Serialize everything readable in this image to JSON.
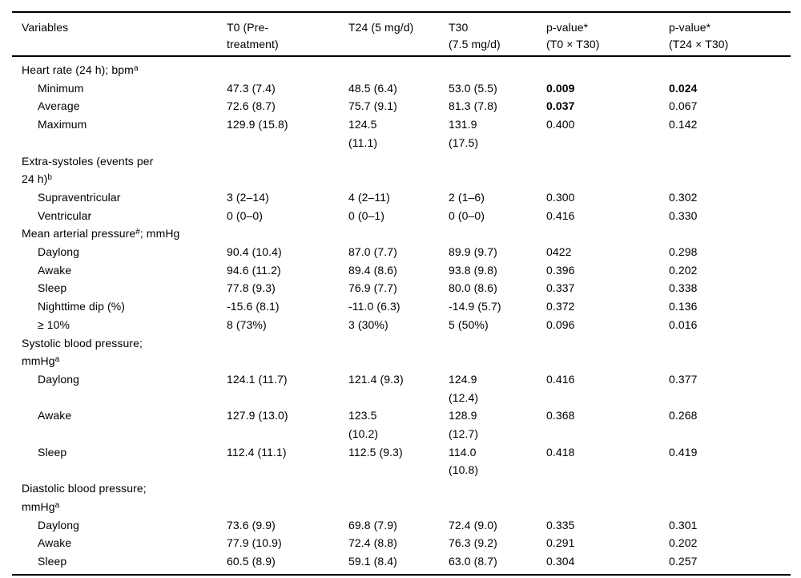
{
  "table": {
    "columns": [
      {
        "label": "Variables"
      },
      {
        "label": "T0 (Pre-\ntreatment)"
      },
      {
        "label": "T24 (5 mg/d)"
      },
      {
        "label": "T30\n(7.5 mg/d)"
      },
      {
        "label": "p-value*\n(T0 × T30)"
      },
      {
        "label": "p-value*\n(T24 × T30)"
      }
    ],
    "rows": [
      {
        "type": "group",
        "label": {
          "pre": "Heart rate (24 h); bpm",
          "sup": "a",
          "post": ""
        },
        "cells": [
          "",
          "",
          "",
          "",
          ""
        ],
        "bold": []
      },
      {
        "type": "sub",
        "label": {
          "pre": "Minimum",
          "sup": "",
          "post": ""
        },
        "cells": [
          "47.3 (7.4)",
          "48.5 (6.4)",
          "53.0 (5.5)",
          "0.009",
          "0.024"
        ],
        "bold": [
          3,
          4
        ]
      },
      {
        "type": "sub",
        "label": {
          "pre": "Average",
          "sup": "",
          "post": ""
        },
        "cells": [
          "72.6 (8.7)",
          "75.7 (9.1)",
          "81.3 (7.8)",
          "0.037",
          "0.067"
        ],
        "bold": [
          3
        ]
      },
      {
        "type": "sub",
        "label": {
          "pre": "Maximum",
          "sup": "",
          "post": ""
        },
        "cells": [
          "129.9 (15.8)",
          "124.5\n(11.1)",
          "131.9\n(17.5)",
          "0.400",
          "0.142"
        ],
        "bold": []
      },
      {
        "type": "group",
        "label": {
          "pre": "Extra-systoles (events per\n24 h)",
          "sup": "b",
          "post": ""
        },
        "cells": [
          "",
          "",
          "",
          "",
          ""
        ],
        "bold": []
      },
      {
        "type": "sub",
        "label": {
          "pre": "Supraventricular",
          "sup": "",
          "post": ""
        },
        "cells": [
          "3 (2–14)",
          "4 (2–11)",
          "2 (1–6)",
          "0.300",
          "0.302"
        ],
        "bold": []
      },
      {
        "type": "sub",
        "label": {
          "pre": "Ventricular",
          "sup": "",
          "post": ""
        },
        "cells": [
          "0 (0–0)",
          "0 (0–1)",
          "0 (0–0)",
          "0.416",
          "0.330"
        ],
        "bold": []
      },
      {
        "type": "group",
        "label": {
          "pre": "Mean arterial pressure",
          "sup": "#",
          "post": "; mmHg"
        },
        "cells": [
          "",
          "",
          "",
          "",
          ""
        ],
        "bold": []
      },
      {
        "type": "sub",
        "label": {
          "pre": "Daylong",
          "sup": "",
          "post": ""
        },
        "cells": [
          "90.4 (10.4)",
          "87.0 (7.7)",
          "89.9 (9.7)",
          "0422",
          "0.298"
        ],
        "bold": []
      },
      {
        "type": "sub",
        "label": {
          "pre": "Awake",
          "sup": "",
          "post": ""
        },
        "cells": [
          "94.6 (11.2)",
          "89.4 (8.6)",
          "93.8 (9.8)",
          "0.396",
          "0.202"
        ],
        "bold": []
      },
      {
        "type": "sub",
        "label": {
          "pre": "Sleep",
          "sup": "",
          "post": ""
        },
        "cells": [
          "77.8 (9.3)",
          "76.9 (7.7)",
          "80.0 (8.6)",
          "0.337",
          "0.338"
        ],
        "bold": []
      },
      {
        "type": "sub",
        "label": {
          "pre": "Nighttime dip (%)",
          "sup": "",
          "post": ""
        },
        "cells": [
          "-15.6 (8.1)",
          "-11.0 (6.3)",
          "-14.9 (5.7)",
          "0.372",
          "0.136"
        ],
        "bold": []
      },
      {
        "type": "sub",
        "label": {
          "pre": "≥ 10%",
          "sup": "",
          "post": ""
        },
        "cells": [
          "8 (73%)",
          "3 (30%)",
          "5 (50%)",
          "0.096",
          "0.016"
        ],
        "bold": []
      },
      {
        "type": "group",
        "label": {
          "pre": "Systolic blood pressure;\nmmHg",
          "sup": "a",
          "post": ""
        },
        "cells": [
          "",
          "",
          "",
          "",
          ""
        ],
        "bold": []
      },
      {
        "type": "sub",
        "label": {
          "pre": "Daylong",
          "sup": "",
          "post": ""
        },
        "cells": [
          "124.1 (11.7)",
          "121.4 (9.3)",
          "124.9\n(12.4)",
          "0.416",
          "0.377"
        ],
        "bold": []
      },
      {
        "type": "sub",
        "label": {
          "pre": "Awake",
          "sup": "",
          "post": ""
        },
        "cells": [
          "127.9 (13.0)",
          "123.5\n(10.2)",
          "128.9\n(12.7)",
          "0.368",
          "0.268"
        ],
        "bold": []
      },
      {
        "type": "sub",
        "label": {
          "pre": "Sleep",
          "sup": "",
          "post": ""
        },
        "cells": [
          "112.4 (11.1)",
          "112.5 (9.3)",
          "114.0\n(10.8)",
          "0.418",
          "0.419"
        ],
        "bold": []
      },
      {
        "type": "group",
        "label": {
          "pre": "Diastolic blood pressure;\nmmHg",
          "sup": "a",
          "post": ""
        },
        "cells": [
          "",
          "",
          "",
          "",
          ""
        ],
        "bold": []
      },
      {
        "type": "sub",
        "label": {
          "pre": "Daylong",
          "sup": "",
          "post": ""
        },
        "cells": [
          "73.6 (9.9)",
          "69.8 (7.9)",
          "72.4 (9.0)",
          "0.335",
          "0.301"
        ],
        "bold": []
      },
      {
        "type": "sub",
        "label": {
          "pre": "Awake",
          "sup": "",
          "post": ""
        },
        "cells": [
          "77.9 (10.9)",
          "72.4 (8.8)",
          "76.3 (9.2)",
          "0.291",
          "0.202"
        ],
        "bold": []
      },
      {
        "type": "sub",
        "label": {
          "pre": "Sleep",
          "sup": "",
          "post": ""
        },
        "cells": [
          "60.5 (8.9)",
          "59.1 (8.4)",
          "63.0 (8.7)",
          "0.304",
          "0.257"
        ],
        "bold": []
      }
    ]
  }
}
